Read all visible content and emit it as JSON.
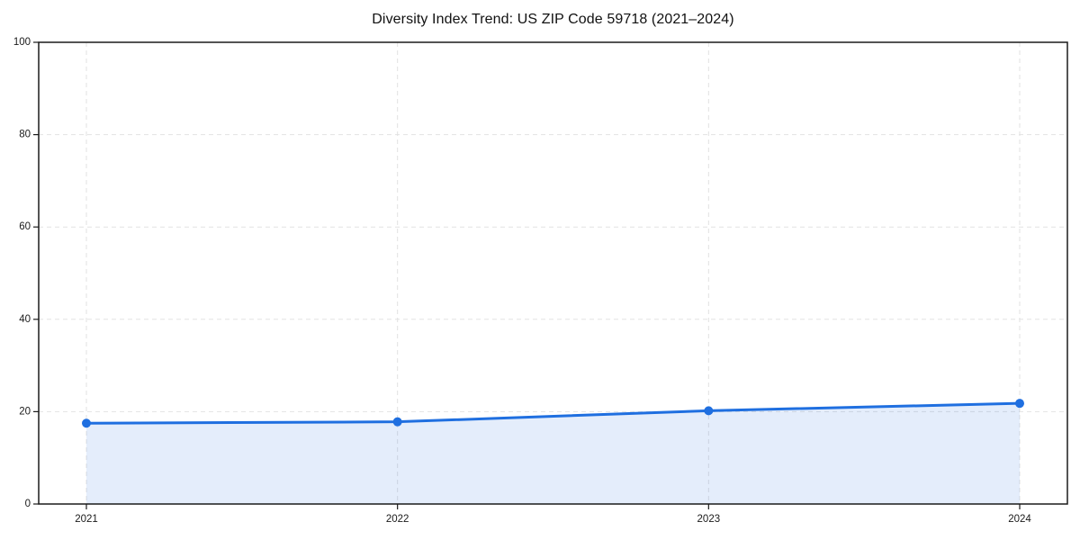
{
  "chart_data": {
    "type": "line",
    "title": "Diversity Index Trend: US ZIP Code 59718 (2021–2024)",
    "categories": [
      "2021",
      "2022",
      "2023",
      "2024"
    ],
    "series": [
      {
        "name": "Diversity Index",
        "values": [
          17.5,
          17.8,
          20.2,
          21.8
        ]
      }
    ],
    "xlabel": "",
    "ylabel": "",
    "ylim": [
      0,
      100
    ],
    "yticks": [
      0,
      20,
      40,
      60,
      80,
      100
    ],
    "grid": true,
    "grid_style": "dashed",
    "legend": false,
    "area_fill": true,
    "style": {
      "line_color": "#1f6fe0",
      "marker_color": "#1f6fe0",
      "fill_color": "rgba(31, 111, 224, 0.12)",
      "grid_color": "#e2e2e2",
      "axis_color": "#1a1a1a",
      "background": "#ffffff"
    }
  }
}
